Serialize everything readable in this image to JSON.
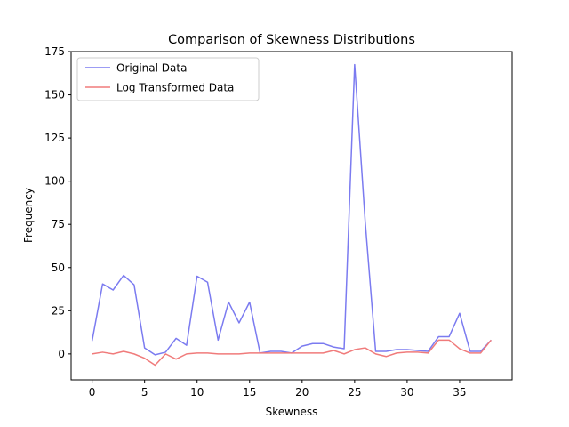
{
  "chart_data": {
    "type": "line",
    "title": "Comparison of Skewness Distributions",
    "xlabel": "Skewness",
    "ylabel": "Frequency",
    "xlim": [
      -2,
      40
    ],
    "ylim": [
      -15,
      175
    ],
    "xticks": [
      0,
      5,
      10,
      15,
      20,
      25,
      30,
      35
    ],
    "yticks": [
      0,
      25,
      50,
      75,
      100,
      125,
      150,
      175
    ],
    "grid": false,
    "legend_position": "top-left",
    "x": [
      0,
      1,
      2,
      3,
      4,
      5,
      6,
      7,
      8,
      9,
      10,
      11,
      12,
      13,
      14,
      15,
      16,
      17,
      18,
      19,
      20,
      21,
      22,
      23,
      24,
      25,
      26,
      27,
      28,
      29,
      30,
      31,
      32,
      33,
      34,
      35,
      36,
      37,
      38
    ],
    "series": [
      {
        "name": "Original Data",
        "color": "#7b7bf0",
        "values": [
          7.5,
          40.5,
          37,
          45.5,
          40,
          3.5,
          -0.5,
          1,
          9,
          5,
          45,
          41.5,
          8,
          30,
          18,
          30,
          0.5,
          1.5,
          1.5,
          0.5,
          4.5,
          6,
          6,
          4,
          3,
          167.5,
          77,
          1.5,
          1.5,
          2.5,
          2.5,
          2,
          1.5,
          10,
          10,
          23.5,
          1.5,
          1.5,
          8
        ]
      },
      {
        "name": "Log Transformed Data",
        "color": "#f07b7b",
        "values": [
          0,
          1,
          0,
          1.5,
          0,
          -2.5,
          -6.5,
          0,
          -3,
          0,
          0.5,
          0.5,
          0,
          0,
          0,
          0.5,
          0.5,
          0.5,
          0.5,
          0.5,
          0.5,
          0.5,
          0.5,
          2,
          0,
          2.5,
          3.5,
          0,
          -1.5,
          0.5,
          1,
          1,
          0.5,
          8,
          8,
          3,
          0.5,
          0.5,
          8
        ]
      }
    ]
  }
}
